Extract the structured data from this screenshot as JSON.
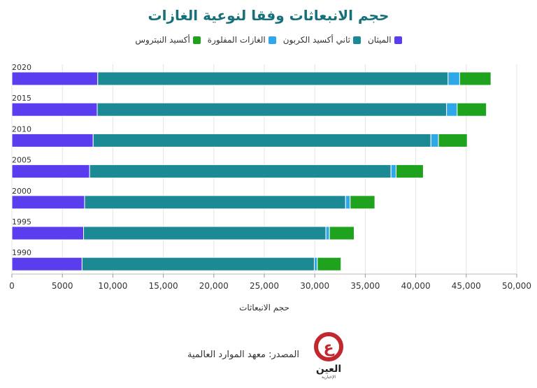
{
  "chart_data": {
    "type": "bar",
    "orientation": "horizontal",
    "stacked": true,
    "title": "حجم الانبعاثات وفقا لنوعية الغازات",
    "xlabel": "حجم الانبعاثات",
    "ylabel": "",
    "xlim": [
      0,
      50000
    ],
    "xticks": [
      0,
      5000,
      10000,
      15000,
      20000,
      25000,
      30000,
      35000,
      40000,
      45000,
      50000
    ],
    "xtick_labels": [
      "0",
      "5000",
      "10,000",
      "15,000",
      "20,000",
      "25,000",
      "30,000",
      "35,000",
      "40,000",
      "45,000",
      "50,000"
    ],
    "grid": true,
    "legend_position": "top",
    "categories": [
      "2020",
      "2015",
      "2010",
      "2005",
      "2000",
      "1995",
      "1990"
    ],
    "series": [
      {
        "name": "الميثان",
        "color": "#5b3df0",
        "values": [
          8500,
          8450,
          8050,
          7700,
          7200,
          7100,
          6950
        ]
      },
      {
        "name": "ثاني أكسيد الكربون",
        "color": "#1b8a94",
        "values": [
          34700,
          34600,
          33450,
          29850,
          25850,
          24000,
          23000
        ]
      },
      {
        "name": "الغازات المفلورة",
        "color": "#2ea8e8",
        "values": [
          1150,
          1050,
          750,
          500,
          450,
          350,
          300
        ]
      },
      {
        "name": "أكسيد النيتروس",
        "color": "#1fa31f",
        "values": [
          3100,
          2900,
          2850,
          2700,
          2450,
          2450,
          2350
        ]
      }
    ]
  },
  "colors": {
    "title": "#16707a",
    "axis_title": "#333333",
    "tick_text": "#333333",
    "logo_red": "#c1272d"
  },
  "source": {
    "label": "المصدر: معهد الموارد العالمية"
  },
  "logo": {
    "text": "العين",
    "subtext": "الإخبارية",
    "glyph": "ع"
  }
}
